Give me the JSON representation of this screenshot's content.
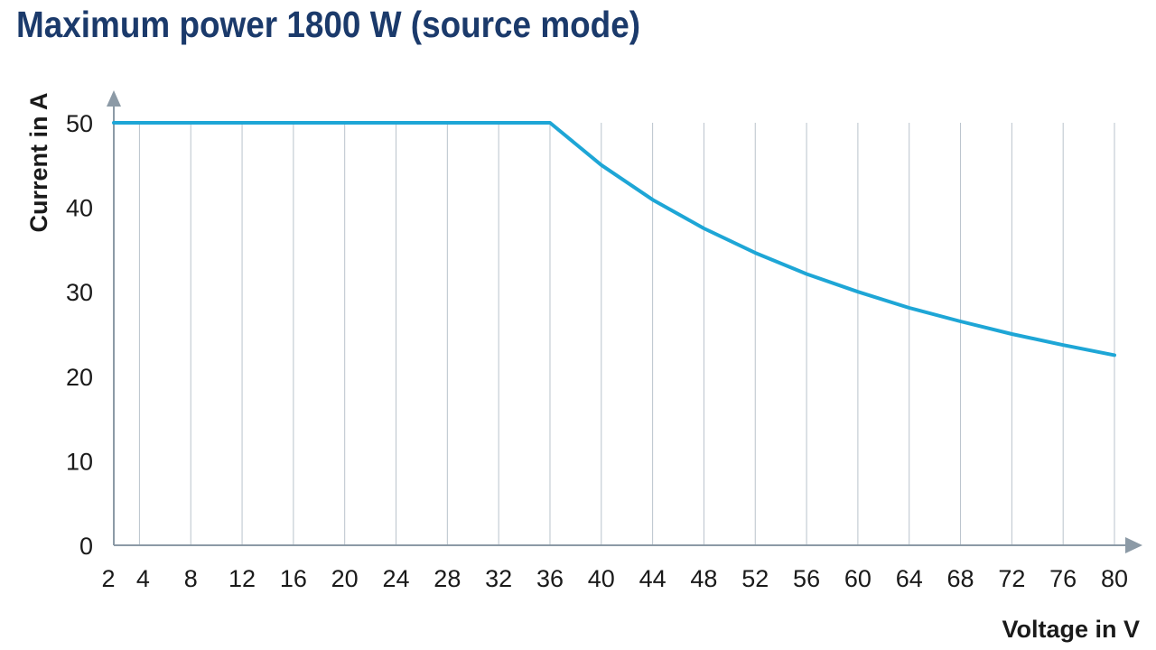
{
  "chart_data": {
    "type": "line",
    "title": "Maximum power 1800 W (source mode)",
    "xlabel": "Voltage in V",
    "ylabel": "Current in A",
    "xlim": [
      2,
      80
    ],
    "ylim": [
      0,
      50
    ],
    "x_ticks": [
      2,
      4,
      8,
      12,
      16,
      20,
      24,
      28,
      32,
      36,
      40,
      44,
      48,
      52,
      56,
      60,
      64,
      68,
      72,
      76,
      80
    ],
    "y_ticks": [
      0,
      10,
      20,
      30,
      40,
      50
    ],
    "grid": "vertical",
    "line_color": "#1ea6d6",
    "title_color": "#1b3a6b",
    "axis_color": "#8c9aa6",
    "series": [
      {
        "x": [
          2,
          4,
          8,
          12,
          16,
          20,
          24,
          28,
          32,
          36,
          40,
          44,
          48,
          52,
          56,
          60,
          64,
          68,
          72,
          76,
          80
        ],
        "values": [
          50,
          50,
          50,
          50,
          50,
          50,
          50,
          50,
          50,
          50,
          45,
          40.9,
          37.5,
          34.6,
          32.1,
          30,
          28.1,
          26.5,
          25,
          23.7,
          22.5
        ]
      }
    ]
  }
}
